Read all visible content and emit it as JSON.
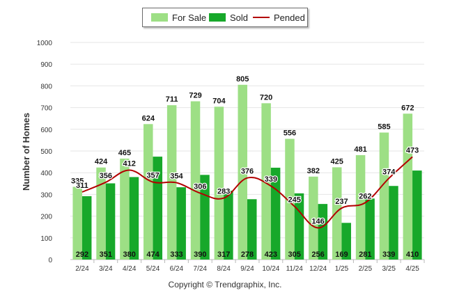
{
  "legend": {
    "for_sale": "For Sale",
    "sold": "Sold",
    "pended": "Pended"
  },
  "copyright": "Copyright © Trendgraphix, Inc.",
  "colors": {
    "for_sale": "#9ddf85",
    "sold": "#17a82a",
    "pended": "#b30000",
    "grid": "#e6e6e6"
  },
  "chart_data": {
    "type": "bar",
    "ylabel": "Number of Homes",
    "ylim": [
      0,
      1000
    ],
    "yticks": [
      0,
      100,
      200,
      300,
      400,
      500,
      600,
      700,
      800,
      900,
      1000
    ],
    "grid": true,
    "legend_position": "top-center",
    "categories": [
      "2/24",
      "3/24",
      "4/24",
      "5/24",
      "6/24",
      "7/24",
      "8/24",
      "9/24",
      "10/24",
      "11/24",
      "12/24",
      "1/25",
      "2/25",
      "3/25",
      "4/25"
    ],
    "series": [
      {
        "name": "For Sale",
        "kind": "bar",
        "values": [
          335,
          424,
          465,
          624,
          711,
          729,
          704,
          805,
          720,
          556,
          382,
          425,
          481,
          585,
          672
        ]
      },
      {
        "name": "Sold",
        "kind": "bar",
        "values": [
          292,
          351,
          380,
          474,
          333,
          390,
          317,
          278,
          423,
          305,
          256,
          169,
          281,
          339,
          410
        ]
      },
      {
        "name": "Pended",
        "kind": "line",
        "values": [
          311,
          356,
          412,
          357,
          354,
          306,
          283,
          376,
          339,
          245,
          146,
          237,
          262,
          374,
          473
        ]
      }
    ]
  }
}
